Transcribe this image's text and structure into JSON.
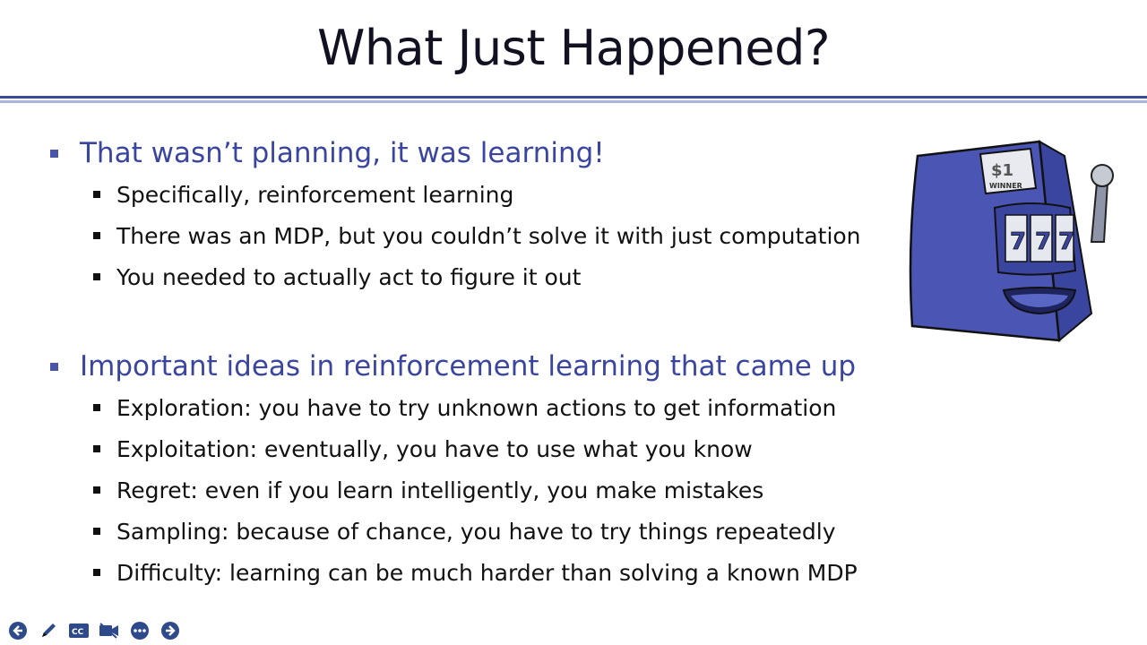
{
  "title": "What Just Happened?",
  "sections": [
    {
      "heading": "That wasn’t planning, it was learning!",
      "items": [
        "Specifically, reinforcement learning",
        "There was an MDP, but you couldn’t solve it with just computation",
        "You needed to actually act to figure it out"
      ]
    },
    {
      "heading": "Important ideas in reinforcement learning that came up",
      "items": [
        "Exploration: you have to try unknown actions to get information",
        "Exploitation: eventually, you have to use what you know",
        "Regret: even if you learn intelligently, you make mistakes",
        "Sampling: because of chance, you have to try things repeatedly",
        "Difficulty: learning can be much harder than solving a known MDP"
      ]
    }
  ],
  "slot_machine": {
    "price": "$1",
    "label": "WINNER",
    "reel1": "7",
    "reel2": "7",
    "reel3": "7"
  },
  "toolbar": {
    "icons": [
      "previous-slide-icon",
      "pen-icon",
      "captions-icon",
      "camera-icon",
      "more-options-icon",
      "next-slide-icon"
    ],
    "captions_label": "CC"
  },
  "colors": {
    "accent": "#3a45a0",
    "rule_dark": "#3a4a96",
    "rule_light": "#aab3d9",
    "machine": "#4a55b4",
    "toolbar_icon": "#2f4a8a"
  }
}
